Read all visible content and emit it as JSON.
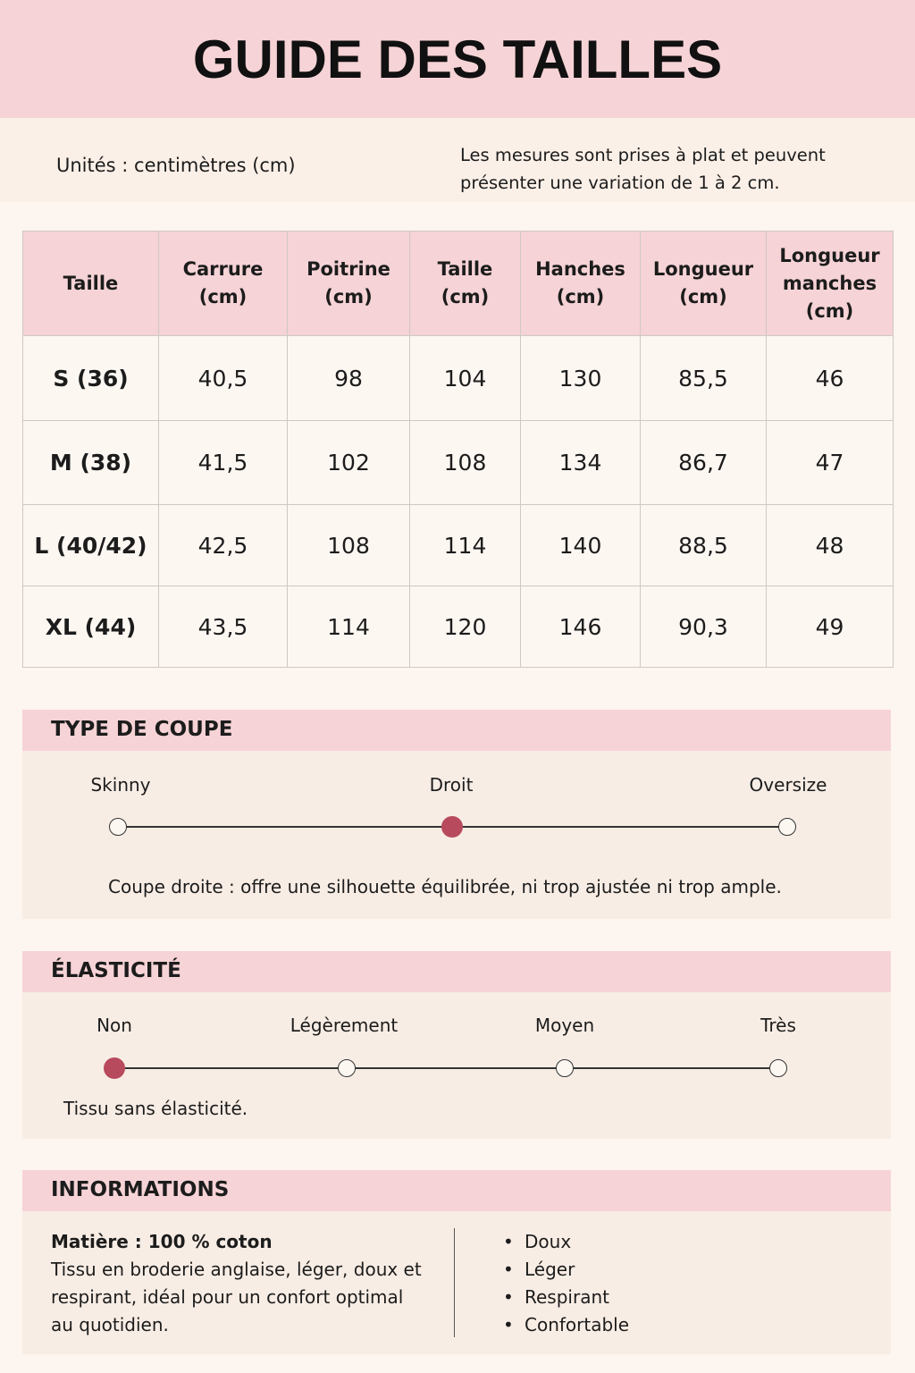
{
  "title": "GUIDE DES TAILLES",
  "units": "Unités : centimètres (cm)",
  "note": "Les mesures sont prises à plat et peuvent présenter une variation de 1 à 2 cm.",
  "table": {
    "headers": [
      "Taille",
      "Carrure (cm)",
      "Poitrine (cm)",
      "Taille (cm)",
      "Hanches (cm)",
      "Longueur (cm)",
      "Longueur manches (cm)"
    ],
    "rows": [
      [
        "S (36)",
        "40,5",
        "98",
        "104",
        "130",
        "85,5",
        "46"
      ],
      [
        "M (38)",
        "41,5",
        "102",
        "108",
        "134",
        "86,7",
        "47"
      ],
      [
        "L (40/42)",
        "42,5",
        "108",
        "114",
        "140",
        "88,5",
        "48"
      ],
      [
        "XL (44)",
        "43,5",
        "114",
        "120",
        "146",
        "90,3",
        "49"
      ]
    ]
  },
  "fit": {
    "title": "TYPE DE COUPE",
    "options": [
      "Skinny",
      "Droit",
      "Oversize"
    ],
    "selected": "Droit",
    "description": "Coupe droite : offre une silhouette équilibrée, ni trop ajustée ni trop ample."
  },
  "elasticity": {
    "title": "ÉLASTICITÉ",
    "options": [
      "Non",
      "Légèrement",
      "Moyen",
      "Très"
    ],
    "selected": "Non",
    "description": "Tissu sans élasticité."
  },
  "info": {
    "title": "INFORMATIONS",
    "material": "Matière : 100 % coton",
    "material_text": "Tissu en broderie anglaise, léger, doux et respirant, idéal pour un confort optimal au quotidien.",
    "features": [
      "Doux",
      "Léger",
      "Respirant",
      "Confortable"
    ]
  },
  "colors": {
    "header_bg": "#f6d3d6",
    "accent": "#b84a5d",
    "page_bg": "#fdf5ef"
  }
}
